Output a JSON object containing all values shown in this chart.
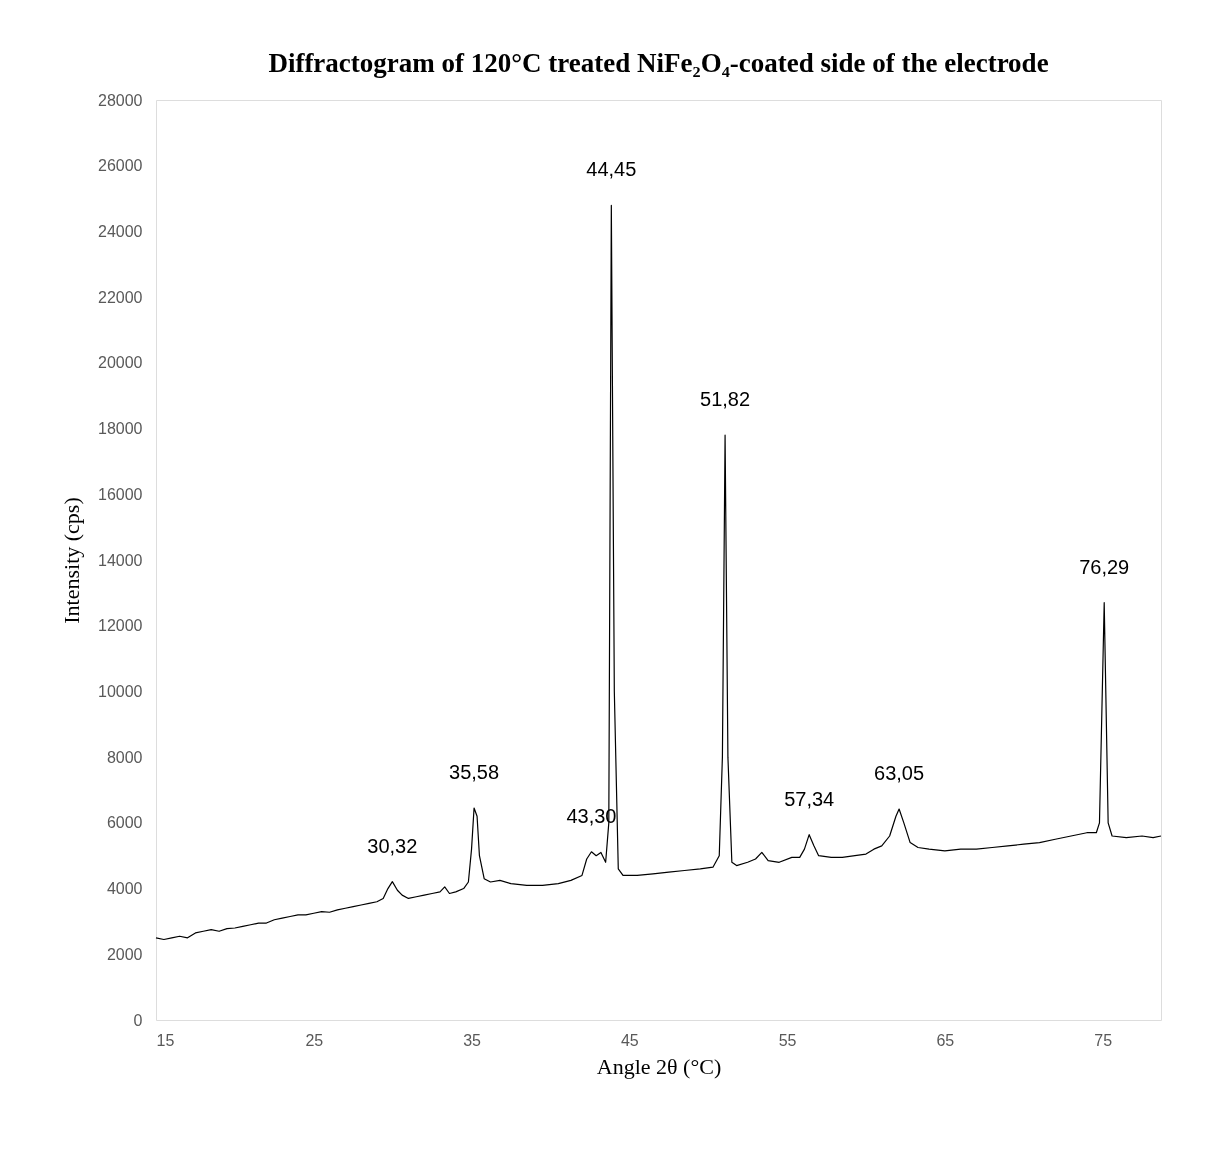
{
  "chart_data": {
    "type": "line",
    "title": "Diffractogram of 120°C treated NiFe₂O₄-coated side of the electrode",
    "xlabel": "Angle 2θ (°C)",
    "ylabel": "Intensity (cps)",
    "xlim": [
      15,
      78.7
    ],
    "xticks": [
      15,
      25,
      35,
      45,
      55,
      65,
      75
    ],
    "ylim": [
      0,
      28000
    ],
    "yticks": [
      0,
      2000,
      4000,
      6000,
      8000,
      10000,
      12000,
      14000,
      16000,
      18000,
      20000,
      22000,
      24000,
      26000,
      28000
    ],
    "grid": false,
    "legend": false,
    "marker": "none",
    "line_style": "solid",
    "series": [
      {
        "color": "#000000",
        "x": [
          15,
          15.5,
          16,
          16.5,
          17,
          17.5,
          18,
          18.5,
          19,
          19.5,
          20,
          20.5,
          21,
          21.5,
          22,
          22.5,
          23,
          23.5,
          24,
          24.5,
          25,
          25.5,
          26,
          26.5,
          27,
          27.5,
          28,
          28.5,
          29,
          29.4,
          29.7,
          29.98,
          30.3,
          30.6,
          31,
          31.5,
          32,
          32.5,
          33,
          33.3,
          33.6,
          34,
          34.5,
          34.8,
          35,
          35.16,
          35.35,
          35.5,
          35.8,
          36.2,
          36.8,
          37.5,
          38.5,
          39.5,
          40.5,
          41.3,
          42,
          42.3,
          42.6,
          42.9,
          43.2,
          43.5,
          43.7,
          43.86,
          44.05,
          44.3,
          44.6,
          45.5,
          46.5,
          47.5,
          48.5,
          49.5,
          50.3,
          50.7,
          50.9,
          51.07,
          51.25,
          51.5,
          51.8,
          52.5,
          53,
          53.4,
          53.8,
          54.5,
          55.3,
          55.8,
          56.1,
          56.4,
          56.7,
          57,
          57.8,
          58.5,
          59.3,
          60,
          60.5,
          61,
          61.5,
          61.9,
          62.1,
          62.4,
          62.8,
          63.3,
          64,
          65,
          66,
          67,
          68,
          69,
          70,
          71,
          72,
          73,
          74,
          74.6,
          74.8,
          75.1,
          75.35,
          75.6,
          76.5,
          77.5,
          78.2,
          78.7
        ],
        "values": [
          2500,
          2450,
          2500,
          2550,
          2500,
          2650,
          2700,
          2750,
          2700,
          2780,
          2800,
          2850,
          2900,
          2950,
          2950,
          3050,
          3100,
          3150,
          3200,
          3200,
          3250,
          3300,
          3280,
          3350,
          3400,
          3450,
          3500,
          3550,
          3600,
          3700,
          4000,
          4210,
          3950,
          3800,
          3700,
          3750,
          3800,
          3850,
          3900,
          4050,
          3850,
          3900,
          4000,
          4200,
          5200,
          6450,
          6200,
          5000,
          4300,
          4200,
          4250,
          4150,
          4100,
          4100,
          4150,
          4250,
          4400,
          4900,
          5120,
          5000,
          5100,
          4800,
          6000,
          24790,
          10000,
          4600,
          4400,
          4400,
          4450,
          4500,
          4550,
          4600,
          4650,
          5000,
          8000,
          17800,
          8000,
          4800,
          4700,
          4800,
          4900,
          5100,
          4850,
          4800,
          4950,
          4950,
          5200,
          5640,
          5300,
          5000,
          4950,
          4950,
          5000,
          5050,
          5200,
          5300,
          5600,
          6200,
          6420,
          6000,
          5400,
          5250,
          5200,
          5150,
          5200,
          5200,
          5250,
          5300,
          5350,
          5400,
          5500,
          5600,
          5700,
          5700,
          6000,
          12700,
          6000,
          5600,
          5550,
          5600,
          5550,
          5600
        ]
      }
    ],
    "annotations": [
      {
        "text": "30,32",
        "x": 29.98,
        "y": 4210
      },
      {
        "text": "35,58",
        "x": 35.16,
        "y": 6450
      },
      {
        "text": "43,30",
        "x": 42.6,
        "y": 5120
      },
      {
        "text": "44,45",
        "x": 43.86,
        "y": 24790
      },
      {
        "text": "51,82",
        "x": 51.07,
        "y": 17800
      },
      {
        "text": "57,34",
        "x": 56.4,
        "y": 5640
      },
      {
        "text": "63,05",
        "x": 62.1,
        "y": 6420
      },
      {
        "text": "76,29",
        "x": 75.1,
        "y": 12700
      }
    ]
  }
}
